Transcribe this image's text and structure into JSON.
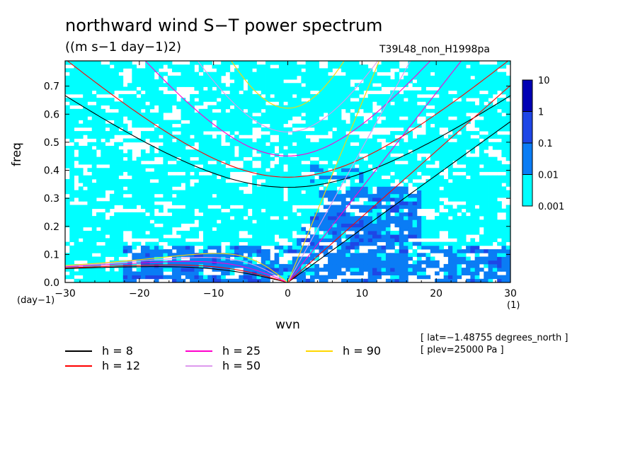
{
  "title": "northward wind S−T power spectrum",
  "units": "((m s−1 day−1)2)",
  "run_name": "T39L48_non_H1998pa",
  "info_lines": [
    "[ lat=−1.48755 degrees_north ]",
    "[ plev=25000 Pa ]"
  ],
  "chart_data": {
    "type": "heatmap",
    "xlabel": "wvn",
    "ylabel": "freq",
    "x_unit": "(1)",
    "y_unit": "(day−1)",
    "xlim": [
      -30,
      30
    ],
    "ylim": [
      0,
      0.79
    ],
    "x_ticks": [
      -30,
      -20,
      -10,
      0,
      10,
      20,
      30
    ],
    "x_tick_labels": [
      "−30",
      "−20",
      "−10",
      "0",
      "10",
      "20",
      "30"
    ],
    "y_ticks": [
      0,
      0.1,
      0.2,
      0.3,
      0.4,
      0.5,
      0.6,
      0.7
    ],
    "y_tick_labels": [
      "0.0",
      "0.1",
      "0.2",
      "0.3",
      "0.4",
      "0.5",
      "0.6",
      "0.7"
    ],
    "colorbar": {
      "levels": [
        0.001,
        0.01,
        0.1,
        1,
        10
      ],
      "labels": [
        "0.001",
        "0.01",
        "0.1",
        "1",
        "10"
      ],
      "colors": [
        "#00ffff",
        "#0a7cf5",
        "#1e46e6",
        "#0000b4",
        "#4b14b4"
      ]
    },
    "dispersion_curves": [
      {
        "name": "h =  8",
        "h": 8,
        "color": "#000000"
      },
      {
        "name": "h = 12",
        "h": 12,
        "color": "#ff0000"
      },
      {
        "name": "h = 25",
        "h": 25,
        "color": "#ff00cc"
      },
      {
        "name": "h = 50",
        "h": 50,
        "color": "#dd99ee"
      },
      {
        "name": "h = 90",
        "h": 90,
        "color": "#ffd700"
      }
    ]
  }
}
